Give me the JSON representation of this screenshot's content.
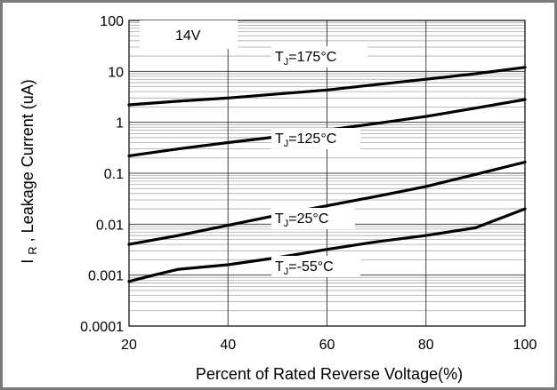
{
  "chart_data": {
    "type": "line",
    "title": "",
    "legend_text": "14V",
    "legend_position": "top-left",
    "xlabel": "Percent of Rated Reverse Voltage(%)",
    "ylabel": "I_R, Leakage Current (uA)",
    "ylabel_parts": {
      "symbol": "I",
      "subscript": "R",
      "rest": ", Leakage Current (uA)"
    },
    "xlim": [
      20,
      100
    ],
    "ylim": [
      0.0001,
      100
    ],
    "yscale": "log",
    "x_ticks": [
      "20",
      "40",
      "60",
      "80",
      "100"
    ],
    "y_ticks": [
      "0.0001",
      "0.001",
      "0.01",
      "0.1",
      "1",
      "10",
      "100"
    ],
    "grid": true,
    "series_colors": [
      "#000000",
      "#000000",
      "#000000",
      "#000000"
    ],
    "series": [
      {
        "name": "T_J=175°C",
        "label_main": "T",
        "label_sub": "J",
        "label_rest": "=175°C",
        "x": [
          20,
          30,
          40,
          50,
          60,
          70,
          80,
          90,
          100
        ],
        "y": [
          2.2,
          2.6,
          3.0,
          3.6,
          4.3,
          5.5,
          7.0,
          9.0,
          12.0
        ]
      },
      {
        "name": "T_J=125°C",
        "label_main": "T",
        "label_sub": "J",
        "label_rest": "=125°C",
        "x": [
          20,
          30,
          40,
          50,
          60,
          70,
          80,
          90,
          100
        ],
        "y": [
          0.22,
          0.3,
          0.4,
          0.52,
          0.7,
          0.95,
          1.3,
          1.9,
          2.8
        ]
      },
      {
        "name": "T_J=25°C",
        "label_main": "T",
        "label_sub": "J",
        "label_rest": "=25°C",
        "x": [
          20,
          30,
          40,
          50,
          60,
          70,
          80,
          90,
          100
        ],
        "y": [
          0.004,
          0.006,
          0.0095,
          0.015,
          0.023,
          0.035,
          0.055,
          0.095,
          0.165
        ]
      },
      {
        "name": "T_J=-55°C",
        "label_main": "T",
        "label_sub": "J",
        "label_rest": "=-55°C",
        "x": [
          20,
          25,
          30,
          40,
          50,
          60,
          70,
          80,
          90,
          95,
          100
        ],
        "y": [
          0.00075,
          0.001,
          0.0013,
          0.0016,
          0.0022,
          0.0032,
          0.0045,
          0.006,
          0.0085,
          0.013,
          0.02
        ]
      }
    ]
  }
}
